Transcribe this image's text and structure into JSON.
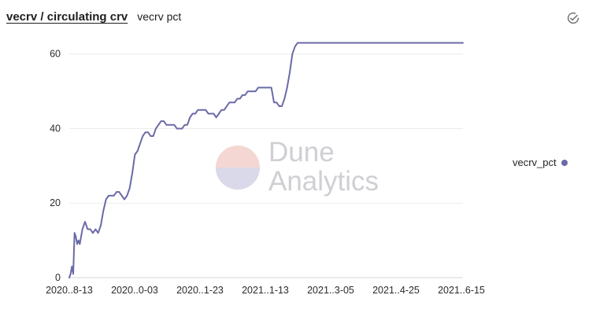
{
  "header": {
    "title": "vecrv / circulating crv",
    "subtitle": "vecrv pct"
  },
  "icons": {
    "check": "check-circle-icon"
  },
  "legend": {
    "label": "vecrv_pct",
    "color": "#6a6aa8"
  },
  "watermark": {
    "line1": "Dune",
    "line2": "Analytics"
  },
  "chart_data": {
    "type": "line",
    "title": "vecrv / circulating crv",
    "subtitle": "vecrv pct",
    "xlabel": "",
    "ylabel": "",
    "ylim": [
      0,
      65
    ],
    "grid": true,
    "legend_position": "right",
    "yticks": [
      0,
      20,
      40,
      60
    ],
    "xtick_labels": [
      "2020..8-13",
      "2020..0-03",
      "2020..1-23",
      "2021..1-13",
      "2021..3-05",
      "2021..4-25",
      "2021..6-15"
    ],
    "series": [
      {
        "name": "vecrv_pct",
        "color": "#6a6aa8",
        "x": [
          0,
          1,
          2,
          3,
          4,
          5,
          6,
          7,
          8,
          10,
          12,
          14,
          16,
          18,
          20,
          22,
          24,
          26,
          28,
          30,
          32,
          34,
          36,
          38,
          40,
          42,
          44,
          46,
          48,
          50,
          52,
          54,
          56,
          58,
          60,
          62,
          64,
          66,
          68,
          70,
          72,
          74,
          76,
          78,
          80,
          82,
          84,
          86,
          88,
          90,
          92,
          94,
          96,
          98,
          100,
          102,
          104,
          106,
          108,
          110,
          112,
          114,
          116,
          118,
          120,
          122,
          124,
          126,
          128,
          130,
          132,
          134,
          136,
          138,
          140,
          142,
          144,
          146,
          148,
          150,
          152,
          154,
          156,
          158,
          160,
          162,
          164,
          166,
          168,
          170,
          172,
          174,
          176,
          178,
          180,
          182,
          184,
          186,
          188,
          190,
          192,
          194,
          196,
          198,
          200,
          202,
          204,
          206,
          208,
          210,
          212,
          214,
          216,
          218,
          220,
          222,
          224,
          226,
          228,
          230,
          232,
          234,
          236,
          238,
          240,
          242,
          244,
          246,
          248,
          250,
          252,
          254,
          256,
          258,
          260,
          262,
          264,
          266,
          268,
          270,
          272,
          274,
          276,
          278,
          280,
          282,
          284,
          286,
          288,
          290,
          292,
          294,
          296,
          298,
          300
        ],
        "values": [
          0,
          1,
          3,
          1,
          12,
          11,
          9,
          10,
          9,
          13,
          15,
          13,
          13,
          12,
          13,
          12,
          14,
          18,
          21,
          22,
          22,
          22,
          23,
          23,
          22,
          21,
          22,
          24,
          28,
          33,
          34,
          36,
          38,
          39,
          39,
          38,
          38,
          40,
          41,
          42,
          42,
          41,
          41,
          41,
          41,
          40,
          40,
          40,
          41,
          41,
          43,
          44,
          44,
          45,
          45,
          45,
          45,
          44,
          44,
          44,
          43,
          44,
          45,
          45,
          46,
          47,
          47,
          47,
          48,
          48,
          49,
          49,
          50,
          50,
          50,
          50,
          51,
          51,
          51,
          51,
          51,
          51,
          47,
          47,
          46,
          46,
          48,
          51,
          55,
          60,
          62,
          63,
          63,
          63,
          63,
          63,
          63,
          63,
          63,
          63,
          63,
          63,
          63,
          63,
          63,
          63,
          63,
          63,
          63,
          63,
          63,
          63,
          63,
          63,
          63,
          63,
          63,
          63,
          63,
          63,
          63,
          63,
          63,
          63,
          63,
          63,
          63,
          63,
          63,
          63,
          63,
          63,
          63,
          63,
          63,
          63,
          63,
          63,
          63,
          63,
          63,
          63,
          63,
          63,
          63,
          63,
          63,
          63,
          63,
          63,
          63,
          63,
          63,
          63,
          63
        ]
      }
    ]
  }
}
